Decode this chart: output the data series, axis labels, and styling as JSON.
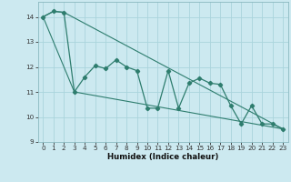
{
  "xlabel": "Humidex (Indice chaleur)",
  "background_color": "#cce9f0",
  "grid_color": "#aad4dc",
  "line_color": "#2e7d6e",
  "spine_color": "#8ab8c0",
  "xlim": [
    -0.5,
    23.5
  ],
  "ylim": [
    9,
    14.6
  ],
  "yticks": [
    9,
    10,
    11,
    12,
    13,
    14
  ],
  "xticks": [
    0,
    1,
    2,
    3,
    4,
    5,
    6,
    7,
    8,
    9,
    10,
    11,
    12,
    13,
    14,
    15,
    16,
    17,
    18,
    19,
    20,
    21,
    22,
    23
  ],
  "series1_x": [
    0,
    1,
    2,
    3,
    4,
    5,
    6,
    7,
    8,
    9,
    10,
    11,
    12,
    13,
    14,
    15,
    16,
    17,
    18,
    19,
    20,
    21,
    22,
    23
  ],
  "series1_y": [
    14.0,
    14.22,
    14.18,
    11.0,
    11.6,
    12.05,
    11.93,
    12.28,
    12.0,
    11.85,
    10.35,
    10.35,
    11.85,
    10.35,
    11.35,
    11.55,
    11.35,
    11.3,
    10.45,
    9.72,
    10.45,
    9.72,
    9.72,
    9.52
  ],
  "series2_x": [
    0,
    1,
    2,
    23
  ],
  "series2_y": [
    14.0,
    14.22,
    14.18,
    9.52
  ],
  "series3_x": [
    0,
    3,
    23
  ],
  "series3_y": [
    14.0,
    11.0,
    9.52
  ]
}
